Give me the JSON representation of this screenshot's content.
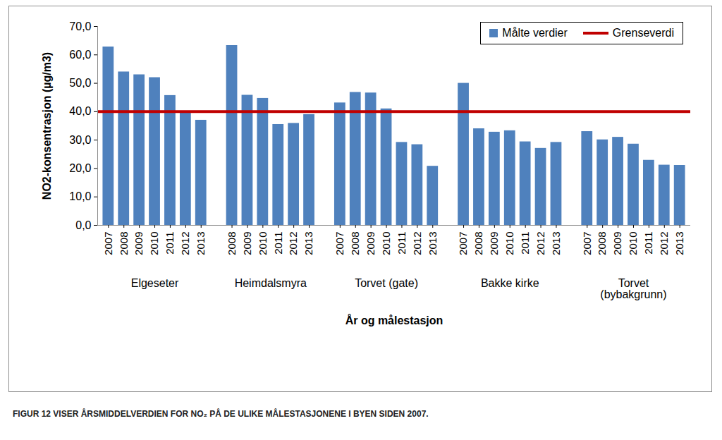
{
  "chart_data": {
    "type": "bar",
    "caption": "FIGUR 12 VISER ÅRSMIDDELVERDIEN FOR NO₂ PÅ DE ULIKE MÅLESTASJONENE I BYEN SIDEN 2007.",
    "x_label": "År og målestasjon",
    "y_label": "NO2-konsentrasjon (µg/m3)",
    "ylim": [
      0,
      70
    ],
    "yticks": [
      {
        "value": 0,
        "label": "0,0"
      },
      {
        "value": 10,
        "label": "10,0"
      },
      {
        "value": 20,
        "label": "20,0"
      },
      {
        "value": 30,
        "label": "30,0"
      },
      {
        "value": 40,
        "label": "40,0"
      },
      {
        "value": 50,
        "label": "50,0"
      },
      {
        "value": 60,
        "label": "60,0"
      },
      {
        "value": 70,
        "label": "70,0"
      }
    ],
    "grid": false,
    "legend": "top-right",
    "series": [
      {
        "name": "Målte verdier",
        "type": "bar",
        "color": "#4f81bd",
        "groups": [
          {
            "label": "Elgeseter",
            "categories": [
              "2007",
              "2008",
              "2009",
              "2010",
              "2011",
              "2012",
              "2013"
            ],
            "values": [
              62.8,
              54.0,
              53.0,
              52.0,
              45.7,
              39.8,
              37.0
            ]
          },
          {
            "label": "Heimdalsmyra",
            "categories": [
              "2008",
              "2009",
              "2010",
              "2011",
              "2012",
              "2013"
            ],
            "values": [
              63.3,
              45.8,
              44.7,
              35.5,
              35.9,
              39.0
            ]
          },
          {
            "label": "Torvet (gate)",
            "categories": [
              "2007",
              "2008",
              "2009",
              "2010",
              "2011",
              "2012",
              "2013"
            ],
            "values": [
              43.1,
              46.8,
              46.6,
              41.0,
              29.2,
              28.4,
              20.8
            ]
          },
          {
            "label": "Bakke kirke",
            "categories": [
              "2007",
              "2008",
              "2009",
              "2010",
              "2011",
              "2012",
              "2013"
            ],
            "values": [
              50.0,
              34.0,
              32.8,
              33.3,
              29.4,
              27.1,
              29.2
            ]
          },
          {
            "label": "Torvet (bybakgrunn)",
            "categories": [
              "2007",
              "2008",
              "2009",
              "2010",
              "2011",
              "2012",
              "2013"
            ],
            "values": [
              33.0,
              30.1,
              31.0,
              28.6,
              22.9,
              21.2,
              21.1
            ]
          }
        ]
      },
      {
        "name": "Grenseverdi",
        "type": "line",
        "color": "#c00000",
        "value": 40
      }
    ]
  }
}
